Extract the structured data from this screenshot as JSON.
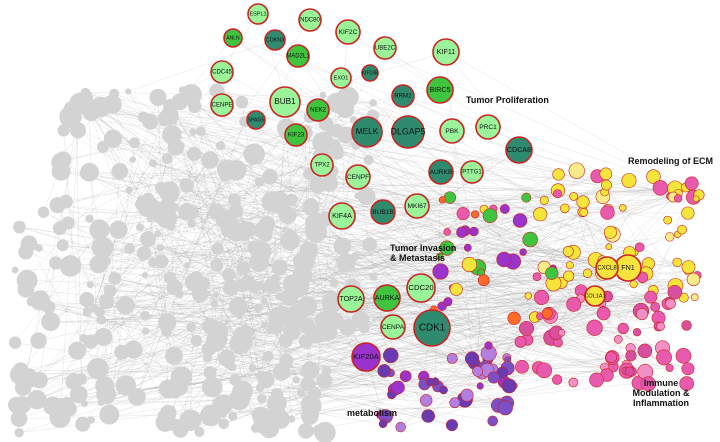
{
  "clusters": [
    "Tumor Proliferation",
    "Remodeling of ECM",
    "Tumor Invasion & Metastasis",
    "Immune Modulation & Inflammation",
    "metabolism"
  ],
  "nodes": [
    "ESPL1",
    "NDC80",
    "ANLN",
    "CDKN3",
    "KIF2C",
    "UBE2C",
    "KIF11",
    "CDC45",
    "MAD2L1",
    "EXO1",
    "KIF18B",
    "BIRC5",
    "CENPE",
    "BUB1",
    "NEK2",
    "RRM2",
    "KIF23",
    "MELK",
    "DLGAP5",
    "PBK",
    "PRC1",
    "SPAG5",
    "TPX2",
    "CENPF",
    "AURKB",
    "PTTG1",
    "CDCA8",
    "KIF4A",
    "BUB1B",
    "MKI67",
    "TOP2A",
    "AURKA",
    "CDC20",
    "CENPA",
    "CDK1",
    "KIF20A",
    "FN1",
    "CXCL8",
    "COL1A1"
  ]
}
